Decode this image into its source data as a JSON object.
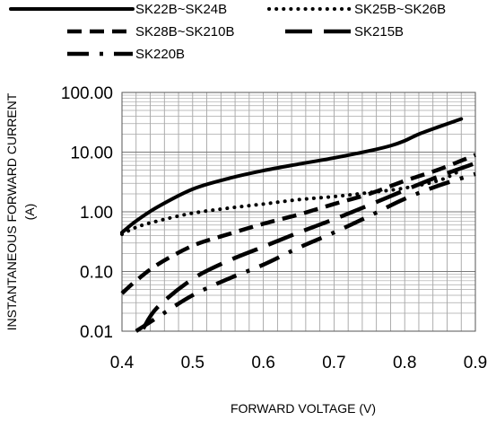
{
  "chart_data": {
    "type": "line",
    "xlabel": "FORWARD VOLTAGE (V)",
    "ylabel_line1": "INSTANTANEOUS FORWARD CURRENT",
    "ylabel_line2": "(A)",
    "xlim": [
      0.4,
      0.9
    ],
    "ylim": [
      0.01,
      100
    ],
    "yscale": "log",
    "grid": true,
    "legend_position": "top",
    "x_ticks": [
      "0.4",
      "0.5",
      "0.6",
      "0.7",
      "0.8",
      "0.9"
    ],
    "y_ticks": [
      "0.01",
      "0.10",
      "1.00",
      "10.00",
      "100.00"
    ],
    "series": [
      {
        "name": "SK22B~SK24B",
        "style": "solid",
        "x": [
          0.4,
          0.42,
          0.45,
          0.5,
          0.55,
          0.6,
          0.65,
          0.7,
          0.75,
          0.78,
          0.8,
          0.82,
          0.85,
          0.88
        ],
        "y": [
          0.45,
          0.7,
          1.2,
          2.4,
          3.6,
          4.9,
          6.3,
          8.0,
          10.5,
          12.8,
          15.5,
          20,
          27,
          36
        ]
      },
      {
        "name": "SK25B~SK26B",
        "style": "dotted",
        "x": [
          0.4,
          0.42,
          0.45,
          0.5,
          0.55,
          0.6,
          0.65,
          0.7,
          0.75,
          0.8,
          0.85,
          0.88
        ],
        "y": [
          0.42,
          0.55,
          0.7,
          0.95,
          1.15,
          1.35,
          1.6,
          1.8,
          2.1,
          2.5,
          3.4,
          5.0
        ]
      },
      {
        "name": "SK28B~SK210B",
        "style": "dashed",
        "x": [
          0.4,
          0.42,
          0.45,
          0.5,
          0.55,
          0.6,
          0.65,
          0.7,
          0.75,
          0.8,
          0.85,
          0.9
        ],
        "y": [
          0.043,
          0.07,
          0.13,
          0.27,
          0.42,
          0.63,
          0.9,
          1.35,
          2.0,
          3.3,
          5.2,
          9.0
        ]
      },
      {
        "name": "SK215B",
        "style": "longdash",
        "x": [
          0.43,
          0.45,
          0.5,
          0.55,
          0.6,
          0.65,
          0.7,
          0.75,
          0.8,
          0.85,
          0.9
        ],
        "y": [
          0.011,
          0.025,
          0.075,
          0.15,
          0.26,
          0.45,
          0.75,
          1.3,
          2.3,
          4.0,
          6.5
        ]
      },
      {
        "name": "SK220B",
        "style": "dashdot",
        "x": [
          0.42,
          0.45,
          0.5,
          0.55,
          0.6,
          0.65,
          0.7,
          0.75,
          0.8,
          0.85,
          0.9
        ],
        "y": [
          0.01,
          0.017,
          0.04,
          0.075,
          0.13,
          0.25,
          0.45,
          0.85,
          1.65,
          2.8,
          4.3
        ]
      }
    ]
  }
}
